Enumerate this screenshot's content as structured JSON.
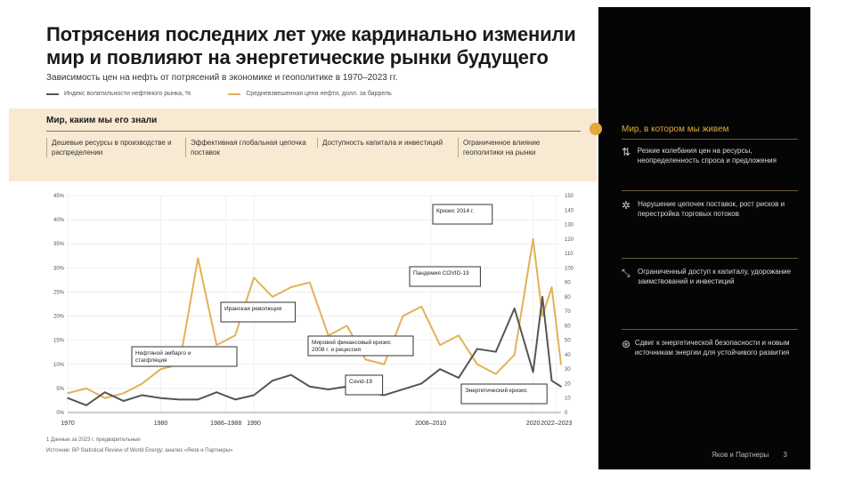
{
  "header": {
    "title_line1": "Потрясения последних лет уже кардинально изменили",
    "title_line2": "мир и повлияют на энергетические рынки будущего",
    "subtitle": "Зависимость цен на нефть от потрясений в экономике и геополитике в 1970–2023 гг.",
    "legend_left": "Индекс волатильности нефтяного рынка, %",
    "legend_right": "Средневзвешенная цена нефти, долл. за баррель"
  },
  "band": {
    "title": "Мир, каким мы его знали",
    "cells": [
      "Дешевые ресурсы в производстве и распределении",
      "Эффективная глобальная цепочка поставок",
      "Доступность капитала и инвестиций",
      "Ограниченное влияние геополитики на рынки"
    ]
  },
  "panel": {
    "title": "Мир, в котором мы живем",
    "items": [
      {
        "icon": "chart-icon",
        "glyph": "⇅",
        "text": "Резкие колебания цен на ресурсы, неопределенность спроса и предложения"
      },
      {
        "icon": "network-icon",
        "glyph": "✲",
        "text": "Нарушение цепочек поставок, рост рисков и перестройка торговых потоков"
      },
      {
        "icon": "arrows-icon",
        "glyph": "⤡",
        "text": "Ограниченный доступ к капиталу, удорожание заимствований и инвестиций"
      },
      {
        "icon": "globe-icon",
        "glyph": "⊛",
        "text": "Сдвиг к энергетической безопасности и новым источникам энергии для устойчивого развития"
      }
    ],
    "footer": "Яков и Партнеры",
    "page": "3"
  },
  "notes": {
    "line1": "1 Данные за 2023 г. предварительные",
    "line2": "Источник: BP Statistical Review of World Energy; анализ «Яков и Партнеры»"
  },
  "colors": {
    "gold": "#e3b256",
    "dark": "#4a4a4a",
    "panel_bg": "#050505",
    "band_bg": "#f7e9d2"
  },
  "chart_data": {
    "type": "line",
    "x": [
      1970,
      1972,
      1974,
      1976,
      1978,
      1980,
      1982,
      1984,
      1986,
      1988,
      1990,
      1992,
      1994,
      1996,
      1998,
      2000,
      2002,
      2004,
      2006,
      2008,
      2010,
      2012,
      2014,
      2016,
      2018,
      2020,
      2021,
      2022,
      2023
    ],
    "series": [
      {
        "name": "Индекс волатильности нефтяного рынка, %",
        "axis": "left",
        "color": "#e3b256",
        "values": [
          4,
          5,
          3,
          4,
          6,
          9,
          10,
          32,
          14,
          16,
          28,
          24,
          26,
          27,
          16,
          18,
          11,
          10,
          20,
          22,
          14,
          16,
          10,
          8,
          12,
          36,
          20,
          26,
          10
        ]
      },
      {
        "name": "Средневзвешенная цена нефти, долл. за баррель",
        "axis": "right",
        "color": "#555555",
        "values": [
          10,
          5,
          14,
          8,
          12,
          10,
          9,
          9,
          14,
          9,
          12,
          22,
          26,
          18,
          16,
          18,
          14,
          12,
          16,
          20,
          30,
          24,
          44,
          42,
          72,
          28,
          80,
          22,
          18
        ]
      }
    ],
    "left_ticks": [
      "0%",
      "5%",
      "10%",
      "15%",
      "20%",
      "25%",
      "30%",
      "35%",
      "40%",
      "45%"
    ],
    "right_ticks": [
      "0",
      "10",
      "20",
      "30",
      "40",
      "50",
      "60",
      "70",
      "80",
      "90",
      "100",
      "110",
      "120",
      "130",
      "140",
      "150"
    ],
    "x_ticks": [
      "1970",
      "1980",
      "1986–1988",
      "1990",
      "2008–2010",
      "2020",
      "2022–2023"
    ],
    "annotations": [
      "Нефтяной эмбарго и стагфляция",
      "Иранская революция",
      "Мировой финансовый кризис 2008 г. и рецессия",
      "Covid-19",
      "Пандемия COVID-19",
      "Кризис 2014 г.",
      "Энергетический кризис"
    ]
  }
}
